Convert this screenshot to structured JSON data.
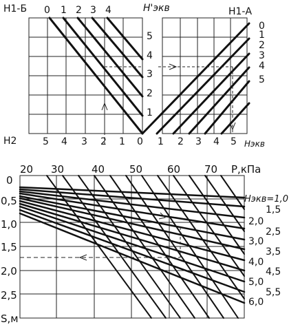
{
  "top": {
    "h1b_label": "H1-Б",
    "h1a_label": "H1-А",
    "h_prime_label": "H'экв",
    "h2_label": "H2",
    "h_ekv_label": "Hэкв",
    "top_scale": [
      "0",
      "1",
      "2",
      "3",
      "4"
    ],
    "left_scale": [
      "5",
      "4",
      "3",
      "2",
      "1",
      "0"
    ],
    "right_scale": [
      "0",
      "1",
      "2",
      "3",
      "4",
      "5"
    ],
    "middle_scale": [
      "5",
      "4",
      "3",
      "2",
      "1"
    ],
    "h1a_curve_labels": [
      "0",
      "1",
      "2",
      "3",
      "4",
      "5"
    ]
  },
  "bottom": {
    "p_label": "P,кПа",
    "s_label": "S,м",
    "h_label": "Hэкв=1,0",
    "p_ticks": [
      "20",
      "30",
      "40",
      "50",
      "60",
      "70"
    ],
    "s_ticks": [
      "0",
      "0,5",
      "1,0",
      "1,5",
      "2,0",
      "2,5"
    ],
    "h_curve_labels": [
      "1,5",
      "2,0",
      "2,5",
      "3,0",
      "3,5",
      "4,0",
      "4,5",
      "5,0",
      "5,5",
      "6,0"
    ]
  }
}
